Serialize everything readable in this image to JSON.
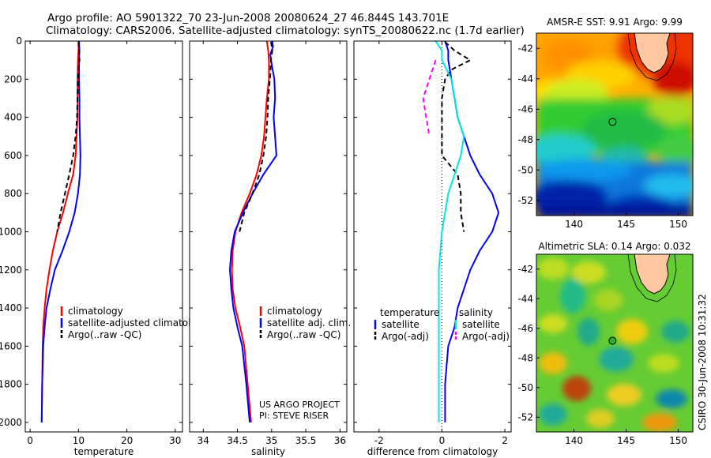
{
  "header": {
    "title_line1": "Argo profile: AO 5901322_70 23-Jun-2008 20080624_27 46.844S 143.701E",
    "title_line2": "Climatology: CARS2006. Satellite-adjusted climatology: synTS_20080622.nc (1.7d earlier)"
  },
  "footer": {
    "project": "US ARGO PROJECT",
    "pi": "PI: STEVE RISER",
    "stamp": "CSIRO 30-Jun-2008 10:31:32"
  },
  "colors": {
    "climatology": "#ff0000",
    "satellite": "#0000ff",
    "argo": "#000000",
    "salinity_satellite": "#00e5e5",
    "salinity_argo": "#ff00ff"
  },
  "chart_data": [
    {
      "type": "line",
      "xlabel": "temperature",
      "ylim": [
        2050,
        0
      ],
      "xlim": [
        -1,
        31.5
      ],
      "xticks": [
        0,
        10,
        20,
        30
      ],
      "yticks": [
        0,
        200,
        400,
        600,
        800,
        1000,
        1200,
        1400,
        1600,
        1800,
        2000
      ],
      "legend": {
        "position": "center-right",
        "entries": [
          "climatology",
          "satellite-adjusted climatology",
          "Argo(..raw -QC)"
        ]
      },
      "series": [
        {
          "name": "climatology",
          "color": "#ff0000",
          "dash": false,
          "points": [
            [
              10,
              0
            ],
            [
              10,
              50
            ],
            [
              9.9,
              100
            ],
            [
              9.8,
              200
            ],
            [
              9.8,
              300
            ],
            [
              9.8,
              400
            ],
            [
              9.6,
              500
            ],
            [
              9.4,
              600
            ],
            [
              8.9,
              700
            ],
            [
              7.8,
              800
            ],
            [
              6.8,
              900
            ],
            [
              5.6,
              1000
            ],
            [
              4.7,
              1100
            ],
            [
              4,
              1200
            ],
            [
              3.4,
              1300
            ],
            [
              3,
              1400
            ],
            [
              2.7,
              1500
            ],
            [
              2.6,
              1600
            ],
            [
              2.5,
              1800
            ],
            [
              2.4,
              2000
            ]
          ]
        },
        {
          "name": "satellite-adjusted climatology",
          "color": "#0000ff",
          "dash": false,
          "points": [
            [
              10.1,
              0
            ],
            [
              10.2,
              50
            ],
            [
              10.1,
              100
            ],
            [
              10.1,
              200
            ],
            [
              10.2,
              300
            ],
            [
              10.2,
              400
            ],
            [
              10.3,
              500
            ],
            [
              10.4,
              600
            ],
            [
              10.3,
              700
            ],
            [
              9.9,
              800
            ],
            [
              9.2,
              900
            ],
            [
              8.1,
              1000
            ],
            [
              6.7,
              1100
            ],
            [
              5.1,
              1200
            ],
            [
              4.2,
              1300
            ],
            [
              3.4,
              1400
            ],
            [
              3,
              1500
            ],
            [
              2.7,
              1600
            ],
            [
              2.5,
              1800
            ],
            [
              2.4,
              2000
            ]
          ]
        },
        {
          "name": "Argo(..raw -QC)",
          "color": "#000000",
          "dash": true,
          "points": [
            [
              10,
              5
            ],
            [
              10.1,
              50
            ],
            [
              10.2,
              100
            ],
            [
              10,
              150
            ],
            [
              9.9,
              200
            ],
            [
              9.8,
              300
            ],
            [
              9.7,
              400
            ],
            [
              9.4,
              500
            ],
            [
              8.9,
              600
            ],
            [
              8.1,
              700
            ],
            [
              7.2,
              800
            ],
            [
              6.3,
              900
            ],
            [
              5.6,
              1000
            ]
          ]
        }
      ]
    },
    {
      "type": "line",
      "xlabel": "salinity",
      "ylim": [
        2050,
        0
      ],
      "xlim": [
        33.8,
        36.1
      ],
      "xticks": [
        34,
        34.5,
        35,
        35.5,
        36
      ],
      "legend": {
        "position": "center-right",
        "entries": [
          "climatology",
          "satellite adj. clim.",
          "Argo(..raw -QC)"
        ]
      },
      "series": [
        {
          "name": "climatology",
          "color": "#ff0000",
          "dash": false,
          "points": [
            [
              34.93,
              0
            ],
            [
              34.95,
              50
            ],
            [
              34.96,
              100
            ],
            [
              34.96,
              200
            ],
            [
              34.93,
              300
            ],
            [
              34.91,
              400
            ],
            [
              34.89,
              500
            ],
            [
              34.85,
              600
            ],
            [
              34.78,
              700
            ],
            [
              34.68,
              800
            ],
            [
              34.56,
              900
            ],
            [
              34.47,
              1000
            ],
            [
              34.43,
              1100
            ],
            [
              34.42,
              1200
            ],
            [
              34.43,
              1300
            ],
            [
              34.47,
              1400
            ],
            [
              34.54,
              1500
            ],
            [
              34.6,
              1600
            ],
            [
              34.65,
              1800
            ],
            [
              34.7,
              2000
            ]
          ]
        },
        {
          "name": "satellite adj. clim.",
          "color": "#0000ff",
          "dash": false,
          "points": [
            [
              35.01,
              0
            ],
            [
              35.02,
              30
            ],
            [
              34.98,
              70
            ],
            [
              35,
              120
            ],
            [
              35.04,
              200
            ],
            [
              35.05,
              300
            ],
            [
              35.03,
              400
            ],
            [
              35.05,
              500
            ],
            [
              35.07,
              600
            ],
            [
              34.88,
              700
            ],
            [
              34.72,
              800
            ],
            [
              34.58,
              900
            ],
            [
              34.46,
              1000
            ],
            [
              34.41,
              1100
            ],
            [
              34.39,
              1200
            ],
            [
              34.41,
              1300
            ],
            [
              34.44,
              1400
            ],
            [
              34.5,
              1500
            ],
            [
              34.57,
              1600
            ],
            [
              34.63,
              1800
            ],
            [
              34.68,
              2000
            ]
          ]
        },
        {
          "name": "Argo(..raw -QC)",
          "color": "#000000",
          "dash": true,
          "points": [
            [
              34.99,
              5
            ],
            [
              35.01,
              50
            ],
            [
              34.99,
              100
            ],
            [
              34.98,
              180
            ],
            [
              34.95,
              300
            ],
            [
              34.94,
              400
            ],
            [
              34.92,
              500
            ],
            [
              34.88,
              600
            ],
            [
              34.82,
              700
            ],
            [
              34.72,
              800
            ],
            [
              34.6,
              900
            ],
            [
              34.53,
              1000
            ]
          ]
        }
      ]
    },
    {
      "type": "line",
      "xlabel": "difference from climatology",
      "ylim": [
        2050,
        0
      ],
      "xlim": [
        -2.8,
        2.2
      ],
      "xticks": [
        -2,
        0,
        2
      ],
      "legend": {
        "position": "center",
        "entries": [
          "temperature",
          "satellite",
          "Argo(-adj)",
          "salinity",
          "satellite",
          "Argo(-adj)"
        ]
      },
      "series": [
        {
          "name": "satellite",
          "group": "temperature",
          "color": "#0000ff",
          "dash": false,
          "points": [
            [
              0.1,
              0
            ],
            [
              0.2,
              50
            ],
            [
              0.2,
              100
            ],
            [
              0.3,
              200
            ],
            [
              0.4,
              300
            ],
            [
              0.5,
              400
            ],
            [
              0.7,
              500
            ],
            [
              0.9,
              600
            ],
            [
              1.2,
              700
            ],
            [
              1.6,
              800
            ],
            [
              1.8,
              900
            ],
            [
              1.6,
              1000
            ],
            [
              1.2,
              1100
            ],
            [
              0.9,
              1200
            ],
            [
              0.7,
              1300
            ],
            [
              0.5,
              1400
            ],
            [
              0.4,
              1500
            ],
            [
              0.2,
              1600
            ],
            [
              0.1,
              1800
            ],
            [
              0.1,
              2000
            ]
          ]
        },
        {
          "name": "Argo(-adj)",
          "group": "temperature",
          "color": "#000000",
          "dash": true,
          "points": [
            [
              0.1,
              5
            ],
            [
              0.4,
              50
            ],
            [
              0.9,
              100
            ],
            [
              0.3,
              150
            ],
            [
              0.1,
              200
            ],
            [
              0,
              300
            ],
            [
              0,
              400
            ],
            [
              0,
              500
            ],
            [
              0,
              600
            ],
            [
              0.5,
              700
            ],
            [
              0.6,
              800
            ],
            [
              0.6,
              900
            ],
            [
              0.7,
              1000
            ]
          ]
        },
        {
          "name": "satellite",
          "group": "salinity",
          "color": "#00e5e5",
          "dash": false,
          "points": [
            [
              -0.2,
              0
            ],
            [
              0,
              50
            ],
            [
              0,
              100
            ],
            [
              0.3,
              200
            ],
            [
              0.4,
              300
            ],
            [
              0.5,
              400
            ],
            [
              0.7,
              500
            ],
            [
              0.6,
              600
            ],
            [
              0.4,
              700
            ],
            [
              0.2,
              800
            ],
            [
              0.1,
              900
            ],
            [
              0,
              1000
            ],
            [
              -0.1,
              1200
            ],
            [
              -0.1,
              1400
            ],
            [
              -0.1,
              1600
            ],
            [
              -0.1,
              1800
            ],
            [
              -0.1,
              2000
            ]
          ]
        },
        {
          "name": "Argo(-adj)",
          "group": "salinity",
          "color": "#ff00ff",
          "dash": true,
          "points": [
            [
              -0.2,
              100
            ],
            [
              -0.4,
              200
            ],
            [
              -0.6,
              300
            ],
            [
              -0.5,
              400
            ],
            [
              -0.4,
              500
            ]
          ]
        }
      ]
    },
    {
      "type": "heatmap",
      "title": "AMSR-E SST: 9.91 Argo: 9.99",
      "xlim": [
        136.4,
        151.4
      ],
      "ylim": [
        -53,
        -41
      ],
      "xticks": [
        140,
        145,
        150
      ],
      "yticks": [
        -42,
        -44,
        -46,
        -48,
        -50,
        -52
      ],
      "marker": [
        143.7,
        -46.84
      ]
    },
    {
      "type": "heatmap",
      "title": "Altimetric SLA: 0.14 Argo: 0.032",
      "xlim": [
        136.4,
        151.4
      ],
      "ylim": [
        -53,
        -41
      ],
      "xticks": [
        140,
        145,
        150
      ],
      "yticks": [
        -42,
        -44,
        -46,
        -48,
        -50,
        -52
      ],
      "marker": [
        143.7,
        -46.84
      ]
    }
  ]
}
